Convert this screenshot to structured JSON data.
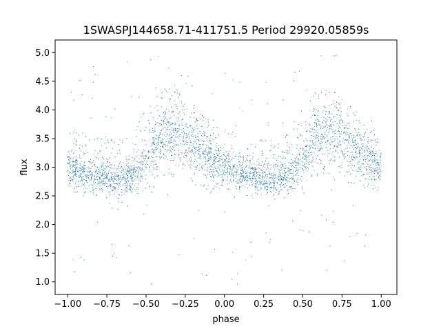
{
  "chart_data": {
    "type": "scatter",
    "title": "1SWASPJ144658.71-411751.5 Period 29920.05859s",
    "xlabel": "phase",
    "ylabel": "flux",
    "xlim": [
      -1.08,
      1.1
    ],
    "ylim": [
      0.78,
      5.22
    ],
    "x_ticks": [
      -1.0,
      -0.75,
      -0.5,
      -0.25,
      0.0,
      0.25,
      0.5,
      0.75,
      1.0
    ],
    "x_tick_labels": [
      "−1.00",
      "−0.75",
      "−0.50",
      "−0.25",
      "0.00",
      "0.25",
      "0.50",
      "0.75",
      "1.00"
    ],
    "y_ticks": [
      1.0,
      1.5,
      2.0,
      2.5,
      3.0,
      3.5,
      4.0,
      4.5,
      5.0
    ],
    "y_tick_labels": [
      "1.0",
      "1.5",
      "2.0",
      "2.5",
      "3.0",
      "3.5",
      "4.0",
      "4.5",
      "5.0"
    ],
    "grid": false,
    "legend": "none",
    "marker_color": "#1f77b4",
    "phase_range": [
      -1.0,
      1.0
    ],
    "flux_range": [
      0.95,
      5.0
    ],
    "light_curve": {
      "phase": [
        0.0,
        0.05,
        0.1,
        0.15,
        0.2,
        0.25,
        0.3,
        0.35,
        0.4,
        0.45,
        0.5,
        0.55,
        0.6,
        0.65,
        0.7,
        0.75,
        0.8,
        0.85,
        0.9,
        0.95,
        1.0
      ],
      "median_flux": [
        3.0,
        2.95,
        2.9,
        2.87,
        2.85,
        2.83,
        2.8,
        2.8,
        2.85,
        2.95,
        3.1,
        3.3,
        3.5,
        3.65,
        3.6,
        3.5,
        3.4,
        3.3,
        3.2,
        3.1,
        3.0
      ],
      "upper_band_flux": [
        3.2,
        3.15,
        3.1,
        3.05,
        3.0,
        3.0,
        3.0,
        3.05,
        3.15,
        3.3,
        3.55,
        3.75,
        3.85,
        3.9,
        3.85,
        3.7,
        3.6,
        3.5,
        3.4,
        3.3,
        3.2
      ],
      "lower_band_flux": [
        2.7,
        2.65,
        2.6,
        2.6,
        2.6,
        2.55,
        2.55,
        2.6,
        2.65,
        2.75,
        2.85,
        2.9,
        2.95,
        2.95,
        2.95,
        2.9,
        2.8,
        2.75,
        2.7,
        2.7,
        2.7
      ]
    }
  }
}
